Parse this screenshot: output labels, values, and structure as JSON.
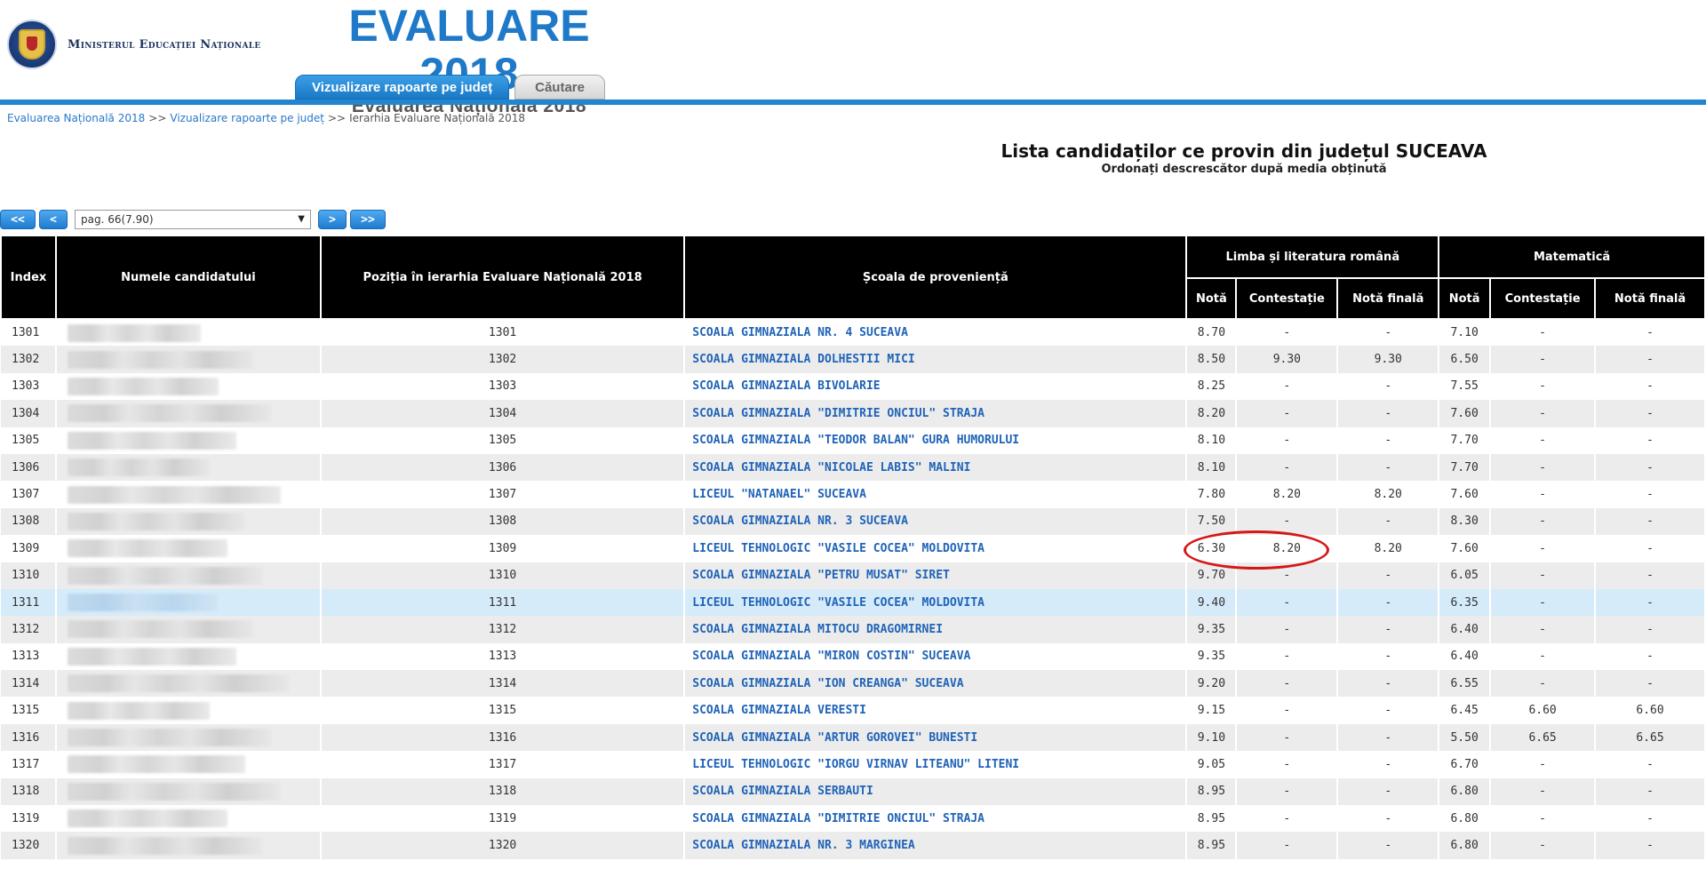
{
  "header": {
    "ministry": "Ministerul Educației Naționale",
    "brand_title": "EVALUARE 2018",
    "brand_subtitle": "Evaluarea Națională 2018",
    "tabs": [
      {
        "label": "Vizualizare rapoarte pe județ",
        "active": true
      },
      {
        "label": "Căutare",
        "active": false
      }
    ],
    "accent_color": "#2185d0"
  },
  "breadcrumb": {
    "items": [
      "Evaluarea Națională 2018",
      "Vizualizare rapoarte pe județ",
      "Ierarhia Evaluare Națională 2018"
    ],
    "separator": ">>"
  },
  "list": {
    "title": "Lista candidaților ce provin din județul SUCEAVA",
    "subtitle": "Ordonați descrescător după media obținută"
  },
  "pager": {
    "first": "<<",
    "prev": "<",
    "selected_page": "pag. 66(7.90)",
    "next": ">",
    "last": ">>"
  },
  "table": {
    "headers": {
      "index": "Index",
      "name": "Numele candidatului",
      "position": "Poziția în ierarhia Evaluare Națională 2018",
      "school": "Școala de proveniență",
      "romana": "Limba și literatura română",
      "matematica": "Matematică",
      "nota": "Notă",
      "contestatie": "Contestație",
      "nota_finala": "Notă finală"
    },
    "rows": [
      {
        "index": "1301",
        "position": "1301",
        "school": "SCOALA GIMNAZIALA NR. 4 SUCEAVA",
        "ro_nota": "8.70",
        "ro_cont": "-",
        "ro_final": "-",
        "ma_nota": "7.10",
        "ma_cont": "-",
        "ma_final": "-"
      },
      {
        "index": "1302",
        "position": "1302",
        "school": "SCOALA GIMNAZIALA DOLHESTII MICI",
        "ro_nota": "8.50",
        "ro_cont": "9.30",
        "ro_final": "9.30",
        "ma_nota": "6.50",
        "ma_cont": "-",
        "ma_final": "-"
      },
      {
        "index": "1303",
        "position": "1303",
        "school": "SCOALA GIMNAZIALA BIVOLARIE",
        "ro_nota": "8.25",
        "ro_cont": "-",
        "ro_final": "-",
        "ma_nota": "7.55",
        "ma_cont": "-",
        "ma_final": "-"
      },
      {
        "index": "1304",
        "position": "1304",
        "school": "SCOALA GIMNAZIALA \"DIMITRIE ONCIUL\" STRAJA",
        "ro_nota": "8.20",
        "ro_cont": "-",
        "ro_final": "-",
        "ma_nota": "7.60",
        "ma_cont": "-",
        "ma_final": "-"
      },
      {
        "index": "1305",
        "position": "1305",
        "school": "SCOALA GIMNAZIALA \"TEODOR BALAN\" GURA HUMORULUI",
        "ro_nota": "8.10",
        "ro_cont": "-",
        "ro_final": "-",
        "ma_nota": "7.70",
        "ma_cont": "-",
        "ma_final": "-"
      },
      {
        "index": "1306",
        "position": "1306",
        "school": "SCOALA GIMNAZIALA \"NICOLAE LABIS\" MALINI",
        "ro_nota": "8.10",
        "ro_cont": "-",
        "ro_final": "-",
        "ma_nota": "7.70",
        "ma_cont": "-",
        "ma_final": "-"
      },
      {
        "index": "1307",
        "position": "1307",
        "school": "LICEUL \"NATANAEL\" SUCEAVA",
        "ro_nota": "7.80",
        "ro_cont": "8.20",
        "ro_final": "8.20",
        "ma_nota": "7.60",
        "ma_cont": "-",
        "ma_final": "-"
      },
      {
        "index": "1308",
        "position": "1308",
        "school": "SCOALA GIMNAZIALA NR. 3 SUCEAVA",
        "ro_nota": "7.50",
        "ro_cont": "-",
        "ro_final": "-",
        "ma_nota": "8.30",
        "ma_cont": "-",
        "ma_final": "-"
      },
      {
        "index": "1309",
        "position": "1309",
        "school": "LICEUL TEHNOLOGIC \"VASILE COCEA\" MOLDOVITA",
        "ro_nota": "6.30",
        "ro_cont": "8.20",
        "ro_final": "8.20",
        "ma_nota": "7.60",
        "ma_cont": "-",
        "ma_final": "-"
      },
      {
        "index": "1310",
        "position": "1310",
        "school": "SCOALA GIMNAZIALA \"PETRU MUSAT\" SIRET",
        "ro_nota": "9.70",
        "ro_cont": "-",
        "ro_final": "-",
        "ma_nota": "6.05",
        "ma_cont": "-",
        "ma_final": "-"
      },
      {
        "index": "1311",
        "position": "1311",
        "school": "LICEUL TEHNOLOGIC \"VASILE COCEA\" MOLDOVITA",
        "ro_nota": "9.40",
        "ro_cont": "-",
        "ro_final": "-",
        "ma_nota": "6.35",
        "ma_cont": "-",
        "ma_final": "-"
      },
      {
        "index": "1312",
        "position": "1312",
        "school": "SCOALA GIMNAZIALA MITOCU DRAGOMIRNEI",
        "ro_nota": "9.35",
        "ro_cont": "-",
        "ro_final": "-",
        "ma_nota": "6.40",
        "ma_cont": "-",
        "ma_final": "-"
      },
      {
        "index": "1313",
        "position": "1313",
        "school": "SCOALA GIMNAZIALA \"MIRON COSTIN\" SUCEAVA",
        "ro_nota": "9.35",
        "ro_cont": "-",
        "ro_final": "-",
        "ma_nota": "6.40",
        "ma_cont": "-",
        "ma_final": "-"
      },
      {
        "index": "1314",
        "position": "1314",
        "school": "SCOALA GIMNAZIALA \"ION CREANGA\" SUCEAVA",
        "ro_nota": "9.20",
        "ro_cont": "-",
        "ro_final": "-",
        "ma_nota": "6.55",
        "ma_cont": "-",
        "ma_final": "-"
      },
      {
        "index": "1315",
        "position": "1315",
        "school": "SCOALA GIMNAZIALA VERESTI",
        "ro_nota": "9.15",
        "ro_cont": "-",
        "ro_final": "-",
        "ma_nota": "6.45",
        "ma_cont": "6.60",
        "ma_final": "6.60"
      },
      {
        "index": "1316",
        "position": "1316",
        "school": "SCOALA GIMNAZIALA \"ARTUR GOROVEI\" BUNESTI",
        "ro_nota": "9.10",
        "ro_cont": "-",
        "ro_final": "-",
        "ma_nota": "5.50",
        "ma_cont": "6.65",
        "ma_final": "6.65"
      },
      {
        "index": "1317",
        "position": "1317",
        "school": "LICEUL TEHNOLOGIC \"IORGU VIRNAV LITEANU\" LITENI",
        "ro_nota": "9.05",
        "ro_cont": "-",
        "ro_final": "-",
        "ma_nota": "6.70",
        "ma_cont": "-",
        "ma_final": "-"
      },
      {
        "index": "1318",
        "position": "1318",
        "school": "SCOALA GIMNAZIALA SERBAUTI",
        "ro_nota": "8.95",
        "ro_cont": "-",
        "ro_final": "-",
        "ma_nota": "6.80",
        "ma_cont": "-",
        "ma_final": "-"
      },
      {
        "index": "1319",
        "position": "1319",
        "school": "SCOALA GIMNAZIALA \"DIMITRIE ONCIUL\" STRAJA",
        "ro_nota": "8.95",
        "ro_cont": "-",
        "ro_final": "-",
        "ma_nota": "6.80",
        "ma_cont": "-",
        "ma_final": "-"
      },
      {
        "index": "1320",
        "position": "1320",
        "school": "SCOALA GIMNAZIALA NR. 3 MARGINEA",
        "ro_nota": "8.95",
        "ro_cont": "-",
        "ro_final": "-",
        "ma_nota": "6.80",
        "ma_cont": "-",
        "ma_final": "-"
      }
    ],
    "highlighted_row": "1311"
  }
}
